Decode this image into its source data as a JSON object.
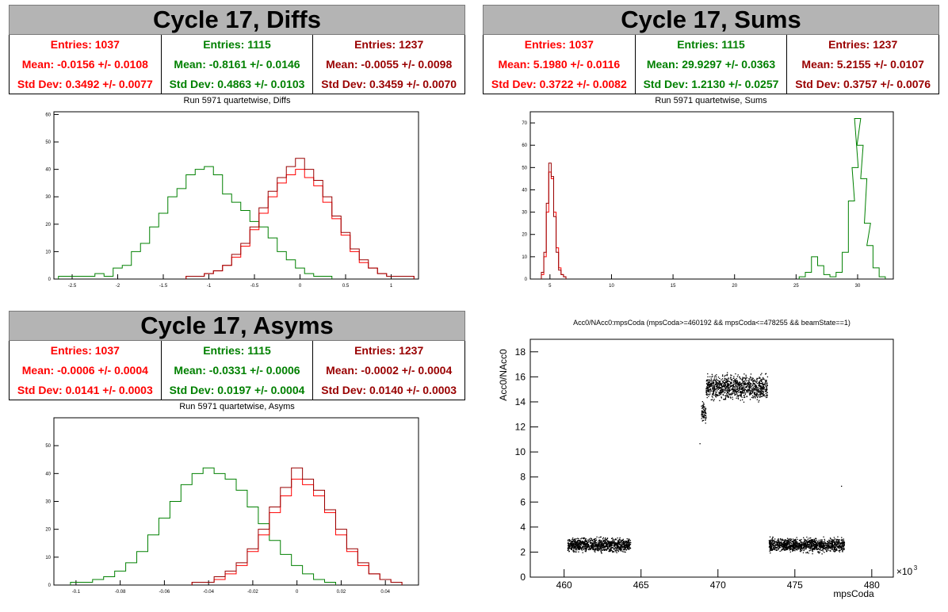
{
  "colors": {
    "red": "#ff0000",
    "green": "#008000",
    "dark_red": "#990000",
    "banner": "#b4b4b4",
    "scatter": "#000000"
  },
  "panels": {
    "diffs": {
      "banner": "Cycle 17, Diffs",
      "subtitle": "Run 5971 quartetwise, Diffs",
      "stats": [
        {
          "entries": "Entries: 1037",
          "mean": "Mean: -0.0156 +/- 0.0108",
          "std": "Std Dev: 0.3492 +/- 0.0077"
        },
        {
          "entries": "Entries: 1115",
          "mean": "Mean: -0.8161 +/- 0.0146",
          "std": "Std Dev: 0.4863 +/- 0.0103"
        },
        {
          "entries": "Entries: 1237",
          "mean": "Mean: -0.0055 +/- 0.0098",
          "std": "Std Dev: 0.3459 +/- 0.0070"
        }
      ]
    },
    "sums": {
      "banner": "Cycle 17, Sums",
      "subtitle": "Run 5971 quartetwise, Sums",
      "stats": [
        {
          "entries": "Entries: 1037",
          "mean": "Mean: 5.1980 +/- 0.0116",
          "std": "Std Dev: 0.3722 +/- 0.0082"
        },
        {
          "entries": "Entries: 1115",
          "mean": "Mean: 29.9297 +/- 0.0363",
          "std": "Std Dev: 1.2130 +/- 0.0257"
        },
        {
          "entries": "Entries: 1237",
          "mean": "Mean: 5.2155 +/- 0.0107",
          "std": "Std Dev: 0.3757 +/- 0.0076"
        }
      ]
    },
    "asyms": {
      "banner": "Cycle 17, Asyms",
      "subtitle": "Run 5971 quartetwise, Asyms",
      "stats": [
        {
          "entries": "Entries: 1037",
          "mean": "Mean: -0.0006 +/- 0.0004",
          "std": "Std Dev: 0.0141 +/- 0.0003"
        },
        {
          "entries": "Entries: 1115",
          "mean": "Mean: -0.0331 +/- 0.0006",
          "std": "Std Dev: 0.0197 +/- 0.0004"
        },
        {
          "entries": "Entries: 1237",
          "mean": "Mean: -0.0002 +/- 0.0004",
          "std": "Std Dev: 0.0140 +/- 0.0003"
        }
      ]
    },
    "scatter": {
      "title": "Acc0/NAcc0:mpsCoda (mpsCoda>=460192 && mpsCoda<=478255 && beamState==1)",
      "xlabel": "mpsCoda",
      "ylabel": "Acc0/NAcc0",
      "exponent": "×10"
    }
  },
  "chart_data": [
    {
      "type": "bar",
      "title": "Run 5971 quartetwise, Diffs",
      "xlim": [
        -2.7,
        1.3
      ],
      "ylim": [
        0,
        61
      ],
      "xticks": [
        -2.5,
        -2,
        -1.5,
        -1,
        -0.5,
        0,
        0.5,
        1
      ],
      "xtick_labels": [
        "-2.5",
        "-2",
        "-1.5",
        "-1",
        "-0.5",
        "0",
        "0.5",
        "1"
      ],
      "yticks": [
        0,
        10,
        20,
        30,
        40,
        50,
        60
      ],
      "ytick_labels": [
        "0",
        "10",
        "20",
        "30",
        "40",
        "50",
        "60"
      ],
      "series": [
        {
          "color": "#008000",
          "x": [
            -2.6,
            -2.5,
            -2.4,
            -2.3,
            -2.2,
            -2.1,
            -2.0,
            -1.9,
            -1.8,
            -1.7,
            -1.6,
            -1.5,
            -1.4,
            -1.3,
            -1.2,
            -1.1,
            -1.0,
            -0.9,
            -0.8,
            -0.7,
            -0.6,
            -0.5,
            -0.4,
            -0.3,
            -0.2,
            -0.1,
            0.0,
            0.1,
            0.2,
            0.3
          ],
          "values": [
            1,
            1,
            1,
            1,
            2,
            1,
            4,
            5,
            10,
            13,
            19,
            24,
            30,
            33,
            38,
            40,
            41,
            38,
            31,
            28,
            25,
            21,
            19,
            15,
            10,
            7,
            4,
            2,
            1,
            1
          ]
        },
        {
          "color": "#ff0000",
          "x": [
            -1.2,
            -1.1,
            -1.0,
            -0.9,
            -0.8,
            -0.7,
            -0.6,
            -0.5,
            -0.4,
            -0.3,
            -0.2,
            -0.1,
            0.0,
            0.1,
            0.2,
            0.3,
            0.4,
            0.5,
            0.6,
            0.7,
            0.8,
            0.9,
            1.0,
            1.1,
            1.2
          ],
          "values": [
            1,
            1,
            2,
            3,
            5,
            8,
            12,
            18,
            24,
            30,
            35,
            38,
            40,
            37,
            34,
            28,
            22,
            16,
            10,
            6,
            4,
            2,
            1,
            1,
            1
          ]
        },
        {
          "color": "#990000",
          "x": [
            -1.2,
            -1.1,
            -1.0,
            -0.9,
            -0.8,
            -0.7,
            -0.6,
            -0.5,
            -0.4,
            -0.3,
            -0.2,
            -0.1,
            0.0,
            0.1,
            0.2,
            0.3,
            0.4,
            0.5,
            0.6,
            0.7,
            0.8,
            0.9,
            1.0,
            1.1,
            1.2
          ],
          "values": [
            1,
            1,
            2,
            3,
            5,
            9,
            13,
            19,
            26,
            32,
            37,
            41,
            44,
            40,
            36,
            30,
            23,
            17,
            11,
            7,
            4,
            2,
            1,
            1,
            1
          ]
        }
      ]
    },
    {
      "type": "bar",
      "title": "Run 5971 quartetwise, Sums",
      "xlim": [
        3.4,
        32.9
      ],
      "ylim": [
        0,
        75
      ],
      "xticks": [
        5,
        10,
        15,
        20,
        25,
        30
      ],
      "xtick_labels": [
        "5",
        "10",
        "15",
        "20",
        "25",
        "30"
      ],
      "yticks": [
        0,
        10,
        20,
        30,
        40,
        50,
        60,
        70
      ],
      "ytick_labels": [
        "0",
        "10",
        "20",
        "30",
        "40",
        "50",
        "60",
        "70"
      ],
      "series": [
        {
          "color": "#008000",
          "x": [
            25.5,
            26.0,
            26.5,
            27.0,
            27.5,
            28.0,
            28.5,
            29.0,
            29.5,
            29.8,
            30.0,
            30.2,
            30.5,
            30.8,
            31.0,
            31.5,
            32.0
          ],
          "values": [
            1,
            3,
            10,
            6,
            2,
            1,
            3,
            12,
            35,
            50,
            72,
            60,
            45,
            25,
            15,
            5,
            1
          ]
        },
        {
          "color": "#ff0000",
          "x": [
            4.4,
            4.6,
            4.8,
            5.0,
            5.2,
            5.4,
            5.6,
            5.8,
            6.0,
            6.2
          ],
          "values": [
            2,
            10,
            30,
            48,
            45,
            30,
            14,
            5,
            2,
            1
          ]
        },
        {
          "color": "#990000",
          "x": [
            4.4,
            4.6,
            4.8,
            5.0,
            5.2,
            5.4,
            5.6,
            5.8,
            6.0,
            6.2
          ],
          "values": [
            3,
            12,
            34,
            52,
            46,
            28,
            12,
            4,
            2,
            1
          ]
        }
      ]
    },
    {
      "type": "bar",
      "title": "Run 5971 quartetwise, Asyms",
      "xlim": [
        -0.11,
        0.055
      ],
      "ylim": [
        0,
        60
      ],
      "xticks": [
        -0.1,
        -0.08,
        -0.06,
        -0.04,
        -0.02,
        0,
        0.02,
        0.04
      ],
      "xtick_labels": [
        "-0.1",
        "-0.08",
        "-0.06",
        "-0.04",
        "-0.02",
        "0",
        "0.02",
        "0.04"
      ],
      "yticks": [
        0,
        10,
        20,
        30,
        40,
        50
      ],
      "ytick_labels": [
        "0",
        "10",
        "20",
        "30",
        "40",
        "50"
      ],
      "series": [
        {
          "color": "#008000",
          "x": [
            -0.1,
            -0.095,
            -0.09,
            -0.085,
            -0.08,
            -0.075,
            -0.07,
            -0.065,
            -0.06,
            -0.055,
            -0.05,
            -0.045,
            -0.04,
            -0.035,
            -0.03,
            -0.025,
            -0.02,
            -0.015,
            -0.01,
            -0.005,
            0.0,
            0.005,
            0.01,
            0.015
          ],
          "values": [
            1,
            1,
            2,
            3,
            5,
            8,
            12,
            18,
            24,
            30,
            36,
            40,
            42,
            40,
            38,
            34,
            28,
            22,
            16,
            11,
            7,
            4,
            2,
            1
          ]
        },
        {
          "color": "#ff0000",
          "x": [
            -0.045,
            -0.04,
            -0.035,
            -0.03,
            -0.025,
            -0.02,
            -0.015,
            -0.01,
            -0.005,
            0.0,
            0.005,
            0.01,
            0.015,
            0.02,
            0.025,
            0.03,
            0.035,
            0.04,
            0.045
          ],
          "values": [
            1,
            1,
            2,
            4,
            7,
            12,
            18,
            26,
            32,
            38,
            36,
            32,
            26,
            18,
            12,
            7,
            4,
            2,
            1
          ]
        },
        {
          "color": "#990000",
          "x": [
            -0.045,
            -0.04,
            -0.035,
            -0.03,
            -0.025,
            -0.02,
            -0.015,
            -0.01,
            -0.005,
            0.0,
            0.005,
            0.01,
            0.015,
            0.02,
            0.025,
            0.03,
            0.035,
            0.04,
            0.045
          ],
          "values": [
            1,
            1,
            3,
            5,
            8,
            13,
            20,
            28,
            35,
            42,
            38,
            34,
            27,
            20,
            13,
            8,
            4,
            2,
            1
          ]
        }
      ]
    },
    {
      "type": "scatter",
      "title": "Acc0/NAcc0:mpsCoda (mpsCoda>=460192 && mpsCoda<=478255 && beamState==1)",
      "xlabel": "mpsCoda",
      "ylabel": "Acc0/NAcc0",
      "xlim": [
        457.8,
        481.4
      ],
      "ylim": [
        0,
        19
      ],
      "xticks": [
        460,
        465,
        470,
        475,
        480
      ],
      "xtick_labels": [
        "460",
        "465",
        "470",
        "475",
        "480"
      ],
      "yticks": [
        0,
        2,
        4,
        6,
        8,
        10,
        12,
        14,
        16,
        18
      ],
      "ytick_labels": [
        "0",
        "2",
        "4",
        "6",
        "8",
        "10",
        "12",
        "14",
        "16",
        "18"
      ],
      "x_exponent": "3",
      "clusters": [
        {
          "x_range": [
            460.2,
            464.3
          ],
          "y_center": 2.6,
          "y_spread": 0.5
        },
        {
          "x_range": [
            468.9,
            469.2
          ],
          "y_center": 13.2,
          "y_spread": 0.8
        },
        {
          "x_range": [
            469.2,
            473.2
          ],
          "y_center": 15.2,
          "y_spread": 0.9
        },
        {
          "x_range": [
            473.3,
            478.2
          ],
          "y_center": 2.6,
          "y_spread": 0.5
        }
      ],
      "outliers": [
        {
          "x": 478.0,
          "y": 7.3
        },
        {
          "x": 468.8,
          "y": 10.7
        }
      ]
    }
  ]
}
